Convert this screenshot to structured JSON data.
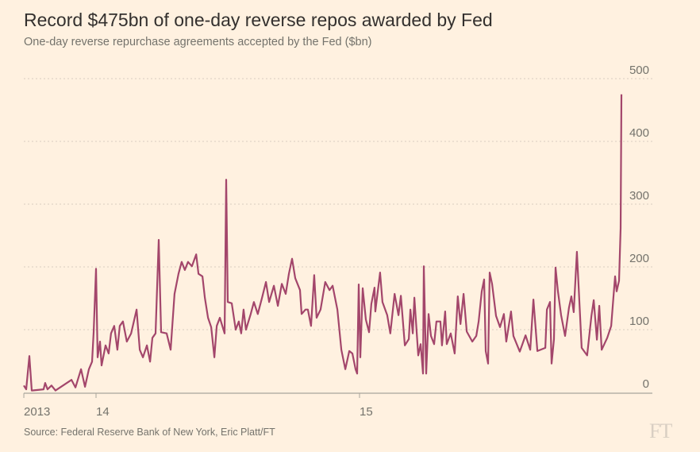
{
  "chart_data": {
    "type": "line",
    "title": "Record $475bn of one-day reverse repos awarded by Fed",
    "subtitle": "One-day reverse repurchase agreements accepted by the Fed ($bn)",
    "source": "Source: Federal Reserve Bank of New York, Eric Platt/FT",
    "logo": "FT",
    "x_tick_labels": [
      {
        "x": 2013.726,
        "label": "2013"
      },
      {
        "x": 2014,
        "label": "14"
      },
      {
        "x": 2015,
        "label": "15"
      }
    ],
    "y_ticks": [
      0,
      100,
      200,
      300,
      400,
      500
    ],
    "ylim": [
      0,
      500
    ],
    "xlim": [
      2013.726,
      2016.12
    ],
    "grid": true,
    "y_axis_side": "right",
    "line_color": "#a3466b",
    "series": [
      {
        "points": [
          [
            2013.726,
            11
          ],
          [
            2013.735,
            5
          ],
          [
            2013.747,
            58
          ],
          [
            2013.756,
            3
          ],
          [
            2013.801,
            5
          ],
          [
            2013.807,
            15
          ],
          [
            2013.816,
            5
          ],
          [
            2013.831,
            11
          ],
          [
            2013.846,
            3
          ],
          [
            2013.907,
            20
          ],
          [
            2013.922,
            8
          ],
          [
            2013.943,
            37
          ],
          [
            2013.958,
            9
          ],
          [
            2013.973,
            37
          ],
          [
            2013.985,
            49
          ],
          [
            2013.991,
            96
          ],
          [
            2014.0,
            197
          ],
          [
            2014.006,
            56
          ],
          [
            2014.015,
            81
          ],
          [
            2014.021,
            43
          ],
          [
            2014.036,
            75
          ],
          [
            2014.048,
            62
          ],
          [
            2014.057,
            94
          ],
          [
            2014.069,
            106
          ],
          [
            2014.081,
            68
          ],
          [
            2014.09,
            106
          ],
          [
            2014.102,
            113
          ],
          [
            2014.117,
            81
          ],
          [
            2014.133,
            94
          ],
          [
            2014.154,
            132
          ],
          [
            2014.166,
            68
          ],
          [
            2014.178,
            56
          ],
          [
            2014.193,
            75
          ],
          [
            2014.205,
            49
          ],
          [
            2014.214,
            87
          ],
          [
            2014.226,
            94
          ],
          [
            2014.238,
            243
          ],
          [
            2014.247,
            96
          ],
          [
            2014.268,
            94
          ],
          [
            2014.283,
            68
          ],
          [
            2014.298,
            157
          ],
          [
            2014.313,
            189
          ],
          [
            2014.325,
            208
          ],
          [
            2014.337,
            195
          ],
          [
            2014.349,
            208
          ],
          [
            2014.364,
            201
          ],
          [
            2014.38,
            220
          ],
          [
            2014.389,
            189
          ],
          [
            2014.404,
            185
          ],
          [
            2014.413,
            151
          ],
          [
            2014.425,
            119
          ],
          [
            2014.437,
            104
          ],
          [
            2014.449,
            56
          ],
          [
            2014.458,
            106
          ],
          [
            2014.47,
            119
          ],
          [
            2014.488,
            94
          ],
          [
            2014.494,
            339
          ],
          [
            2014.5,
            144
          ],
          [
            2014.515,
            142
          ],
          [
            2014.53,
            100
          ],
          [
            2014.542,
            113
          ],
          [
            2014.551,
            94
          ],
          [
            2014.56,
            132
          ],
          [
            2014.569,
            100
          ],
          [
            2014.587,
            125
          ],
          [
            2014.599,
            144
          ],
          [
            2014.614,
            125
          ],
          [
            2014.63,
            151
          ],
          [
            2014.645,
            176
          ],
          [
            2014.657,
            144
          ],
          [
            2014.675,
            170
          ],
          [
            2014.69,
            138
          ],
          [
            2014.705,
            173
          ],
          [
            2014.72,
            157
          ],
          [
            2014.732,
            189
          ],
          [
            2014.744,
            213
          ],
          [
            2014.756,
            182
          ],
          [
            2014.774,
            163
          ],
          [
            2014.78,
            125
          ],
          [
            2014.795,
            132
          ],
          [
            2014.804,
            132
          ],
          [
            2014.816,
            106
          ],
          [
            2014.828,
            187
          ],
          [
            2014.837,
            119
          ],
          [
            2014.852,
            132
          ],
          [
            2014.87,
            176
          ],
          [
            2014.886,
            163
          ],
          [
            2014.898,
            170
          ],
          [
            2014.916,
            132
          ],
          [
            2014.931,
            68
          ],
          [
            2014.946,
            37
          ],
          [
            2014.961,
            66
          ],
          [
            2014.973,
            62
          ],
          [
            2014.985,
            37
          ],
          [
            2014.991,
            30
          ],
          [
            2014.997,
            172
          ],
          [
            2015.003,
            56
          ],
          [
            2015.012,
            166
          ],
          [
            2015.024,
            116
          ],
          [
            2015.036,
            96
          ],
          [
            2015.045,
            141
          ],
          [
            2015.057,
            167
          ],
          [
            2015.06,
            129
          ],
          [
            2015.078,
            191
          ],
          [
            2015.087,
            144
          ],
          [
            2015.105,
            123
          ],
          [
            2015.117,
            94
          ],
          [
            2015.133,
            157
          ],
          [
            2015.148,
            123
          ],
          [
            2015.157,
            154
          ],
          [
            2015.172,
            75
          ],
          [
            2015.187,
            85
          ],
          [
            2015.193,
            132
          ],
          [
            2015.202,
            94
          ],
          [
            2015.208,
            151
          ],
          [
            2015.223,
            59
          ],
          [
            2015.232,
            77
          ],
          [
            2015.241,
            30
          ],
          [
            2015.244,
            201
          ],
          [
            2015.253,
            30
          ],
          [
            2015.262,
            125
          ],
          [
            2015.271,
            90
          ],
          [
            2015.283,
            77
          ],
          [
            2015.292,
            113
          ],
          [
            2015.307,
            113
          ],
          [
            2015.313,
            75
          ],
          [
            2015.325,
            129
          ],
          [
            2015.331,
            77
          ],
          [
            2015.346,
            94
          ],
          [
            2015.361,
            62
          ],
          [
            2015.373,
            153
          ],
          [
            2015.383,
            109
          ],
          [
            2015.395,
            157
          ],
          [
            2015.407,
            97
          ],
          [
            2015.428,
            81
          ],
          [
            2015.443,
            90
          ],
          [
            2015.452,
            113
          ],
          [
            2015.464,
            161
          ],
          [
            2015.473,
            180
          ],
          [
            2015.479,
            66
          ],
          [
            2015.488,
            46
          ],
          [
            2015.494,
            191
          ],
          [
            2015.503,
            173
          ],
          [
            2015.518,
            122
          ],
          [
            2015.533,
            104
          ],
          [
            2015.548,
            125
          ],
          [
            2015.557,
            81
          ],
          [
            2015.575,
            129
          ],
          [
            2015.584,
            90
          ],
          [
            2015.608,
            65
          ],
          [
            2015.63,
            91
          ],
          [
            2015.648,
            68
          ],
          [
            2015.66,
            148
          ],
          [
            2015.675,
            66
          ],
          [
            2015.705,
            71
          ],
          [
            2015.711,
            132
          ],
          [
            2015.723,
            144
          ],
          [
            2015.729,
            46
          ],
          [
            2015.738,
            85
          ],
          [
            2015.744,
            199
          ],
          [
            2015.753,
            161
          ],
          [
            2015.765,
            123
          ],
          [
            2015.78,
            90
          ],
          [
            2015.795,
            135
          ],
          [
            2015.804,
            153
          ],
          [
            2015.813,
            128
          ],
          [
            2015.825,
            224
          ],
          [
            2015.843,
            71
          ],
          [
            2015.864,
            59
          ],
          [
            2015.88,
            122
          ],
          [
            2015.889,
            147
          ],
          [
            2015.901,
            84
          ],
          [
            2015.91,
            138
          ],
          [
            2015.919,
            68
          ],
          [
            2015.94,
            87
          ],
          [
            2015.955,
            106
          ],
          [
            2015.964,
            153
          ],
          [
            2015.97,
            185
          ],
          [
            2015.976,
            161
          ],
          [
            2015.985,
            178
          ],
          [
            2015.991,
            262
          ],
          [
            2015.994,
            475
          ]
        ]
      }
    ]
  }
}
